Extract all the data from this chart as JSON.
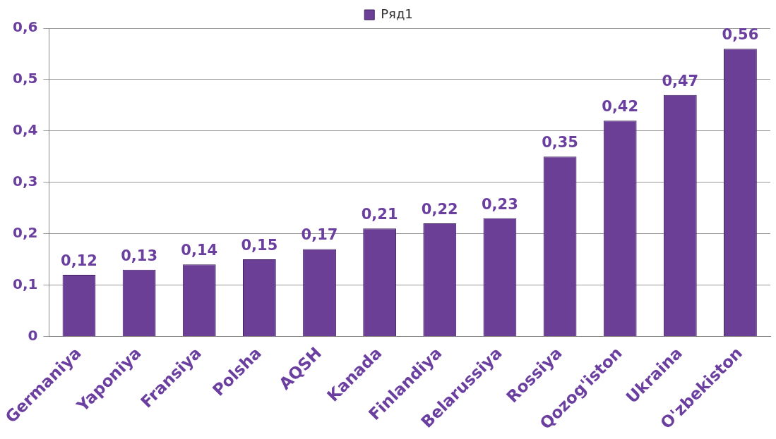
{
  "chart_data": {
    "type": "bar",
    "categories": [
      "Germaniya",
      "Yaponiya",
      "Fransiya",
      "Polsha",
      "AQSH",
      "Kanada",
      "Finlandiya",
      "Belarussiya",
      "Rossiya",
      "Qozog'iston",
      "Ukraina",
      "O'zbekiston"
    ],
    "series": [
      {
        "name": "Ряд1",
        "color": "#6b3f96",
        "values": [
          0.12,
          0.13,
          0.14,
          0.15,
          0.17,
          0.21,
          0.22,
          0.23,
          0.35,
          0.42,
          0.47,
          0.56
        ],
        "value_labels": [
          "0,12",
          "0,13",
          "0,14",
          "0,15",
          "0,17",
          "0,21",
          "0,22",
          "0,23",
          "0,35",
          "0,42",
          "0,47",
          "0,56"
        ]
      }
    ],
    "ylim": [
      0,
      0.6
    ],
    "yticks": [
      {
        "value": 0,
        "label": "0"
      },
      {
        "value": 0.1,
        "label": "0,1"
      },
      {
        "value": 0.2,
        "label": "0,2"
      },
      {
        "value": 0.3,
        "label": "0,3"
      },
      {
        "value": 0.4,
        "label": "0,4"
      },
      {
        "value": 0.5,
        "label": "0,5"
      },
      {
        "value": 0.6,
        "label": "0,6"
      }
    ],
    "grid": "y",
    "legend": "top"
  }
}
